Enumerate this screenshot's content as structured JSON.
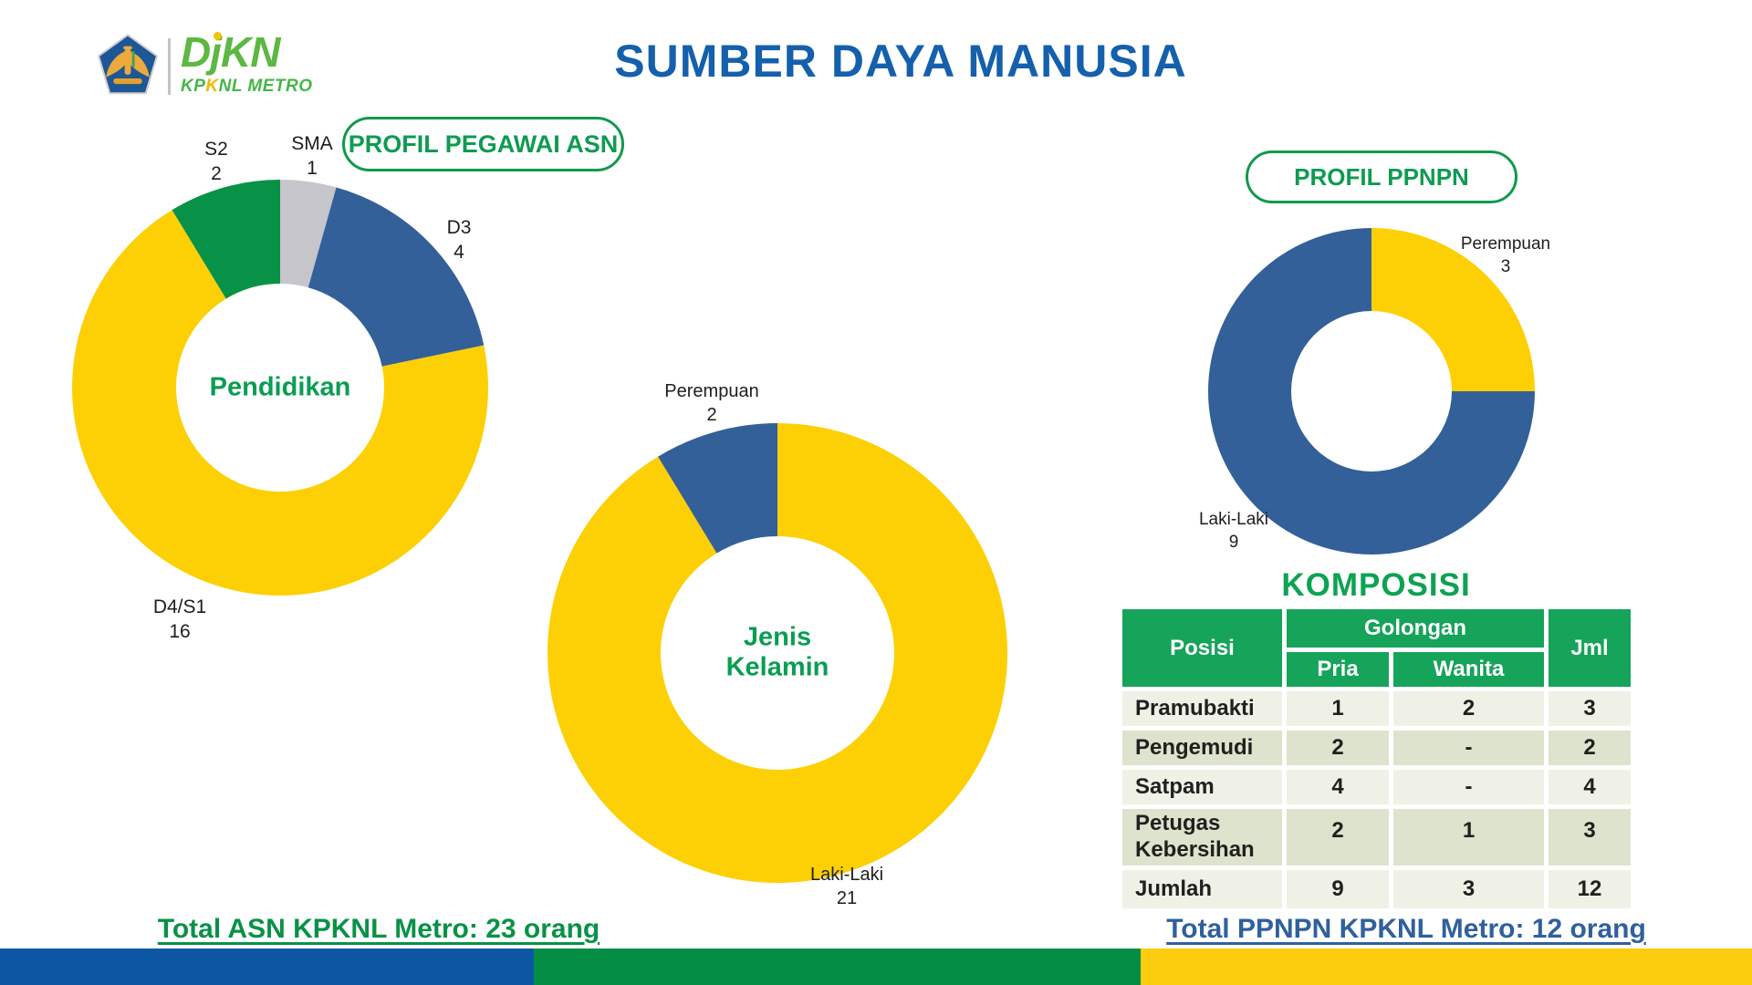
{
  "brand": {
    "name_letters": [
      "D",
      "j",
      "KN"
    ],
    "sub_parts": [
      "KP",
      "K",
      "NL METRO"
    ]
  },
  "title": "SUMBER DAYA MANUSIA",
  "badges": {
    "asn": "PROFIL PEGAWAI ASN",
    "ppnpn": "PROFIL PPNPN"
  },
  "totals": {
    "asn": "Total ASN KPKNL Metro: 23 orang",
    "ppnpn": "Total PPNPN KPKNL Metro: 12 orang"
  },
  "komposisi": {
    "title": "KOMPOSISI",
    "col_posisi": "Posisi",
    "col_golongan": "Golongan",
    "col_jml": "Jml",
    "col_pria": "Pria",
    "col_wanita": "Wanita",
    "rows": [
      {
        "posisi": "Pramubakti",
        "pria": "1",
        "wanita": "2",
        "jml": "3"
      },
      {
        "posisi": "Pengemudi",
        "pria": "2",
        "wanita": "-",
        "jml": "2"
      },
      {
        "posisi": "Satpam",
        "pria": "4",
        "wanita": "-",
        "jml": "4"
      },
      {
        "posisi": "Petugas Kebersihan",
        "pria": "2",
        "wanita": "1",
        "jml": "3"
      },
      {
        "posisi": "Jumlah",
        "pria": "9",
        "wanita": "3",
        "jml": "12"
      }
    ]
  },
  "chart_data": [
    {
      "type": "pie",
      "subtype": "donut",
      "title": "Profil Pegawai ASN - Pendidikan",
      "center_label": "Pendidikan",
      "total": 23,
      "start_at": "top",
      "direction": "clockwise",
      "segments": [
        {
          "label": "SMA",
          "value": 1,
          "color": "#c5c5cb"
        },
        {
          "label": "D3",
          "value": 4,
          "color": "#336099"
        },
        {
          "label": "D4/S1",
          "value": 16,
          "color": "#fdd005"
        },
        {
          "label": "S2",
          "value": 2,
          "color": "#089247"
        }
      ]
    },
    {
      "type": "pie",
      "subtype": "donut",
      "title": "Profil Pegawai ASN - Jenis Kelamin",
      "center_label_lines": [
        "Jenis",
        "Kelamin"
      ],
      "total": 23,
      "start_at": "top",
      "direction": "clockwise",
      "segments": [
        {
          "label": "Laki-Laki",
          "value": 21,
          "color": "#fdd005"
        },
        {
          "label": "Perempuan",
          "value": 2,
          "color": "#336099"
        }
      ]
    },
    {
      "type": "pie",
      "subtype": "donut",
      "title": "Profil PPNPN - Jenis Kelamin",
      "total": 12,
      "start_at": "top",
      "direction": "clockwise",
      "segments": [
        {
          "label": "Perempuan",
          "value": 3,
          "color": "#fdd005"
        },
        {
          "label": "Laki-Laki",
          "value": 9,
          "color": "#336099"
        }
      ]
    }
  ],
  "colors": {
    "title_blue": "#1560ac",
    "accent_green": "#0f9b52",
    "donut_yellow": "#fdd005",
    "donut_blue": "#336099",
    "donut_green": "#089247",
    "donut_gray": "#c5c5cb",
    "table_header_green": "#16a35a",
    "row_light": "#eff1e6",
    "row_dark": "#dde3cc",
    "bar_blue": "#0b57a4",
    "bar_green": "#048d44",
    "bar_yellow": "#fccc0e"
  }
}
